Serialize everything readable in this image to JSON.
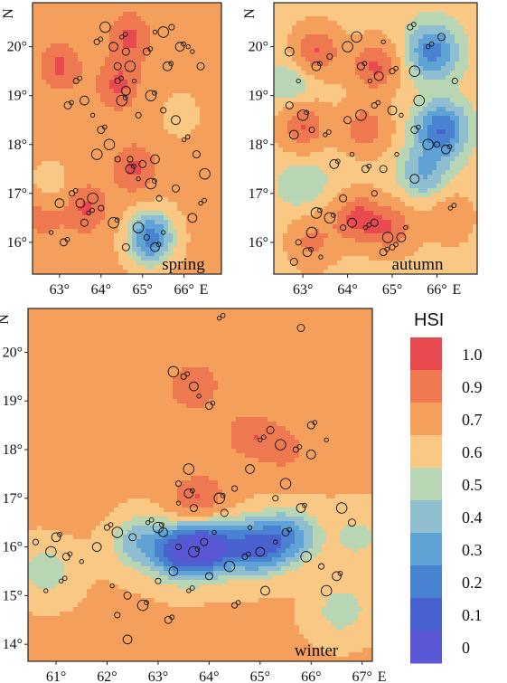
{
  "chart_data": [
    {
      "type": "heatmap",
      "panel_label": "spring",
      "x_ticks": [
        "63°",
        "64°",
        "65°",
        "66°"
      ],
      "x_tick_values": [
        63,
        64,
        65,
        66
      ],
      "x_unit": "E",
      "y_ticks": [
        "16°",
        "17°",
        "18°",
        "19°",
        "20°"
      ],
      "y_tick_values": [
        16,
        17,
        18,
        19,
        20
      ],
      "y_unit": "N",
      "xlim": [
        62.35,
        66.9
      ],
      "ylim": [
        15.35,
        20.9
      ],
      "hot_spots": [
        {
          "lon": 63.0,
          "lat": 19.6,
          "hsi": 0.95
        },
        {
          "lon": 64.4,
          "lat": 19.2,
          "hsi": 0.95
        },
        {
          "lon": 64.7,
          "lat": 20.2,
          "hsi": 0.95
        },
        {
          "lon": 62.6,
          "lat": 16.6,
          "hsi": 0.92
        },
        {
          "lon": 63.6,
          "lat": 16.7,
          "hsi": 0.95
        },
        {
          "lon": 64.8,
          "lat": 17.5,
          "hsi": 0.95
        }
      ],
      "cold_spots": [
        {
          "lon": 65.2,
          "lat": 16.1,
          "hsi": 0.25
        },
        {
          "lon": 62.8,
          "lat": 17.0,
          "hsi": 0.55
        },
        {
          "lon": 65.9,
          "lat": 18.6,
          "hsi": 0.65
        }
      ],
      "points": [
        [
          64.5,
          20.2
        ],
        [
          64.6,
          19.9
        ],
        [
          64.7,
          19.6
        ],
        [
          64.4,
          19.3
        ],
        [
          64.6,
          19.1
        ],
        [
          64.8,
          19.3
        ],
        [
          65.1,
          19.9
        ],
        [
          65.5,
          20.3
        ],
        [
          65.7,
          20.4
        ],
        [
          65.9,
          20.0
        ],
        [
          66.2,
          19.9
        ],
        [
          66.4,
          19.6
        ],
        [
          65.2,
          19.0
        ],
        [
          65.5,
          18.7
        ],
        [
          65.8,
          18.5
        ],
        [
          66.0,
          18.1
        ],
        [
          66.3,
          17.8
        ],
        [
          66.5,
          17.4
        ],
        [
          63.4,
          19.3
        ],
        [
          63.6,
          18.9
        ],
        [
          63.8,
          18.6
        ],
        [
          64.0,
          18.3
        ],
        [
          64.2,
          18.0
        ],
        [
          64.4,
          17.7
        ],
        [
          64.7,
          17.5
        ],
        [
          64.9,
          17.3
        ],
        [
          65.0,
          17.6
        ],
        [
          65.2,
          17.2
        ],
        [
          65.4,
          16.9
        ],
        [
          63.5,
          16.8
        ],
        [
          63.7,
          16.6
        ],
        [
          63.6,
          16.4
        ],
        [
          63.8,
          16.9
        ],
        [
          63.3,
          17.0
        ],
        [
          63.0,
          16.8
        ],
        [
          62.8,
          16.2
        ],
        [
          63.1,
          16.0
        ],
        [
          64.9,
          16.3
        ],
        [
          65.1,
          16.1
        ],
        [
          65.3,
          15.9
        ],
        [
          65.5,
          16.2
        ],
        [
          64.6,
          15.9
        ],
        [
          64.3,
          16.4
        ],
        [
          64.0,
          16.7
        ],
        [
          66.2,
          16.5
        ],
        [
          66.4,
          16.8
        ],
        [
          65.8,
          17.1
        ],
        [
          64.1,
          20.4
        ],
        [
          63.9,
          20.1
        ],
        [
          64.3,
          20.0
        ],
        [
          65.3,
          20.3
        ],
        [
          63.2,
          18.8
        ],
        [
          63.9,
          17.8
        ],
        [
          64.9,
          18.6
        ],
        [
          65.6,
          19.6
        ],
        [
          66.1,
          20.0
        ],
        [
          64.4,
          19.6
        ],
        [
          64.5,
          18.9
        ],
        [
          64.7,
          17.7
        ],
        [
          65.3,
          17.7
        ]
      ]
    },
    {
      "type": "heatmap",
      "panel_label": "autumn",
      "x_ticks": [
        "63°",
        "64°",
        "65°",
        "66°"
      ],
      "x_tick_values": [
        63,
        64,
        65,
        66
      ],
      "x_unit": "E",
      "y_ticks": [
        "16°",
        "17°",
        "18°",
        "19°",
        "20°"
      ],
      "y_tick_values": [
        16,
        17,
        18,
        19,
        20
      ],
      "y_unit": "N",
      "xlim": [
        62.35,
        66.9
      ],
      "ylim": [
        15.35,
        20.9
      ],
      "hot_spots": [
        {
          "lon": 63.3,
          "lat": 19.9,
          "hsi": 0.95
        },
        {
          "lon": 64.6,
          "lat": 19.6,
          "hsi": 0.95
        },
        {
          "lon": 63.0,
          "lat": 18.4,
          "hsi": 0.95
        },
        {
          "lon": 64.4,
          "lat": 18.3,
          "hsi": 0.9
        },
        {
          "lon": 64.2,
          "lat": 16.5,
          "hsi": 0.95
        },
        {
          "lon": 65.0,
          "lat": 16.3,
          "hsi": 0.9
        },
        {
          "lon": 63.2,
          "lat": 16.0,
          "hsi": 0.85
        },
        {
          "lon": 66.3,
          "lat": 16.5,
          "hsi": 0.8
        }
      ],
      "cold_spots": [
        {
          "lon": 65.9,
          "lat": 19.9,
          "hsi": 0.25
        },
        {
          "lon": 66.1,
          "lat": 18.3,
          "hsi": 0.2
        },
        {
          "lon": 65.7,
          "lat": 17.4,
          "hsi": 0.4
        },
        {
          "lon": 62.8,
          "lat": 19.2,
          "hsi": 0.45
        },
        {
          "lon": 63.0,
          "lat": 17.2,
          "hsi": 0.5
        },
        {
          "lon": 64.0,
          "lat": 17.3,
          "hsi": 0.6
        }
      ],
      "points": [
        [
          65.8,
          20.0
        ],
        [
          66.1,
          20.2
        ],
        [
          65.5,
          19.5
        ],
        [
          65.0,
          19.5
        ],
        [
          64.7,
          19.4
        ],
        [
          64.5,
          19.3
        ],
        [
          64.3,
          19.6
        ],
        [
          64.0,
          20.0
        ],
        [
          63.6,
          19.8
        ],
        [
          63.3,
          19.6
        ],
        [
          62.9,
          19.3
        ],
        [
          62.7,
          18.8
        ],
        [
          63.0,
          18.6
        ],
        [
          63.2,
          18.3
        ],
        [
          62.8,
          18.2
        ],
        [
          63.5,
          18.2
        ],
        [
          64.0,
          18.5
        ],
        [
          64.3,
          18.6
        ],
        [
          64.6,
          18.8
        ],
        [
          65.0,
          18.7
        ],
        [
          65.2,
          18.6
        ],
        [
          65.5,
          18.3
        ],
        [
          65.8,
          18.0
        ],
        [
          66.0,
          18.0
        ],
        [
          66.2,
          17.9
        ],
        [
          65.1,
          17.8
        ],
        [
          64.8,
          17.5
        ],
        [
          63.6,
          16.5
        ],
        [
          63.9,
          16.3
        ],
        [
          64.1,
          16.4
        ],
        [
          64.4,
          16.3
        ],
        [
          64.6,
          16.4
        ],
        [
          64.9,
          16.1
        ],
        [
          65.0,
          15.9
        ],
        [
          65.2,
          16.1
        ],
        [
          65.3,
          16.3
        ],
        [
          64.8,
          15.8
        ],
        [
          63.2,
          16.2
        ],
        [
          62.9,
          16.0
        ],
        [
          63.1,
          15.8
        ],
        [
          63.4,
          15.7
        ],
        [
          62.8,
          15.6
        ],
        [
          63.3,
          16.6
        ],
        [
          64.6,
          17.0
        ],
        [
          65.5,
          17.3
        ],
        [
          66.3,
          16.7
        ],
        [
          63.9,
          16.9
        ],
        [
          64.2,
          20.2
        ],
        [
          65.4,
          20.4
        ],
        [
          62.7,
          19.9
        ],
        [
          64.1,
          17.8
        ],
        [
          64.4,
          17.5
        ],
        [
          65.6,
          18.9
        ],
        [
          66.4,
          19.3
        ],
        [
          63.7,
          17.6
        ],
        [
          64.8,
          20.1
        ]
      ]
    },
    {
      "type": "heatmap",
      "panel_label": "winter",
      "x_ticks": [
        "61°",
        "62°",
        "63°",
        "64°",
        "65°",
        "66°",
        "67°"
      ],
      "x_tick_values": [
        61,
        62,
        63,
        64,
        65,
        66,
        67
      ],
      "x_unit": "E",
      "y_ticks": [
        "14°",
        "15°",
        "16°",
        "17°",
        "18°",
        "19°",
        "20°"
      ],
      "y_tick_values": [
        14,
        15,
        16,
        17,
        18,
        19,
        20
      ],
      "y_unit": "N",
      "xlim": [
        60.45,
        67.2
      ],
      "ylim": [
        13.65,
        20.9
      ],
      "hot_spots": [
        {
          "lon": 63.7,
          "lat": 19.3,
          "hsi": 0.93
        },
        {
          "lon": 63.8,
          "lat": 17.0,
          "hsi": 0.95
        },
        {
          "lon": 64.8,
          "lat": 18.3,
          "hsi": 0.9
        },
        {
          "lon": 65.5,
          "lat": 18.0,
          "hsi": 0.85
        },
        {
          "lon": 62.3,
          "lat": 19.8,
          "hsi": 0.82
        },
        {
          "lon": 65.9,
          "lat": 20.4,
          "hsi": 0.82
        },
        {
          "lon": 61.5,
          "lat": 17.2,
          "hsi": 0.82
        }
      ],
      "cold_spots": [
        {
          "lon": 64.0,
          "lat": 16.0,
          "hsi": 0.12
        },
        {
          "lon": 63.4,
          "lat": 15.9,
          "hsi": 0.2
        },
        {
          "lon": 64.9,
          "lat": 16.0,
          "hsi": 0.2
        },
        {
          "lon": 65.6,
          "lat": 16.2,
          "hsi": 0.35
        },
        {
          "lon": 62.6,
          "lat": 16.1,
          "hsi": 0.45
        },
        {
          "lon": 60.8,
          "lat": 15.5,
          "hsi": 0.52
        },
        {
          "lon": 66.6,
          "lat": 14.7,
          "hsi": 0.52
        },
        {
          "lon": 66.9,
          "lat": 16.2,
          "hsi": 0.55
        }
      ],
      "points": [
        [
          64.2,
          20.7
        ],
        [
          65.8,
          20.5
        ],
        [
          63.3,
          19.6
        ],
        [
          63.5,
          19.5
        ],
        [
          63.7,
          19.3
        ],
        [
          63.8,
          19.1
        ],
        [
          64.0,
          18.9
        ],
        [
          63.6,
          17.6
        ],
        [
          63.4,
          17.3
        ],
        [
          63.6,
          17.1
        ],
        [
          63.4,
          16.9
        ],
        [
          63.7,
          16.8
        ],
        [
          64.2,
          17.0
        ],
        [
          64.5,
          17.2
        ],
        [
          64.8,
          17.6
        ],
        [
          65.0,
          18.2
        ],
        [
          65.2,
          18.4
        ],
        [
          65.4,
          18.1
        ],
        [
          65.7,
          18.0
        ],
        [
          66.0,
          17.9
        ],
        [
          66.3,
          18.2
        ],
        [
          66.0,
          18.5
        ],
        [
          65.5,
          17.3
        ],
        [
          65.3,
          17.0
        ],
        [
          65.8,
          16.8
        ],
        [
          64.1,
          16.3
        ],
        [
          63.9,
          16.1
        ],
        [
          63.7,
          15.9
        ],
        [
          63.4,
          16.0
        ],
        [
          63.1,
          16.3
        ],
        [
          62.8,
          16.5
        ],
        [
          62.5,
          16.2
        ],
        [
          62.2,
          16.3
        ],
        [
          62.0,
          16.4
        ],
        [
          61.8,
          16.0
        ],
        [
          61.5,
          15.7
        ],
        [
          61.2,
          15.8
        ],
        [
          60.9,
          15.9
        ],
        [
          60.6,
          16.1
        ],
        [
          61.0,
          16.2
        ],
        [
          62.1,
          15.2
        ],
        [
          62.4,
          15.0
        ],
        [
          62.7,
          14.8
        ],
        [
          63.0,
          15.3
        ],
        [
          63.3,
          15.5
        ],
        [
          63.6,
          15.1
        ],
        [
          64.0,
          15.4
        ],
        [
          64.4,
          15.6
        ],
        [
          64.7,
          15.8
        ],
        [
          65.0,
          15.9
        ],
        [
          65.3,
          16.1
        ],
        [
          65.5,
          16.3
        ],
        [
          65.9,
          15.8
        ],
        [
          66.2,
          15.6
        ],
        [
          66.5,
          15.4
        ],
        [
          64.8,
          16.4
        ],
        [
          64.3,
          16.7
        ],
        [
          63.0,
          16.4
        ],
        [
          62.2,
          14.6
        ],
        [
          62.4,
          14.1
        ],
        [
          61.1,
          15.3
        ],
        [
          66.8,
          16.5
        ],
        [
          66.6,
          16.8
        ],
        [
          64.5,
          14.8
        ],
        [
          65.1,
          15.1
        ],
        [
          60.8,
          15.1
        ],
        [
          63.2,
          14.5
        ],
        [
          66.3,
          15.1
        ]
      ]
    }
  ],
  "colorbar": {
    "title": "HSI",
    "ticks": [
      "1.0",
      "0.9",
      "0.7",
      "0.6",
      "0.5",
      "0.4",
      "0.3",
      "0.2",
      "0.1",
      "0"
    ],
    "colors": [
      "#e84a4f",
      "#ee7951",
      "#f4a05c",
      "#f9c884",
      "#b9d6b4",
      "#8fbed0",
      "#5ea2d6",
      "#4a82d2",
      "#4a62d0",
      "#5a57d4"
    ]
  }
}
